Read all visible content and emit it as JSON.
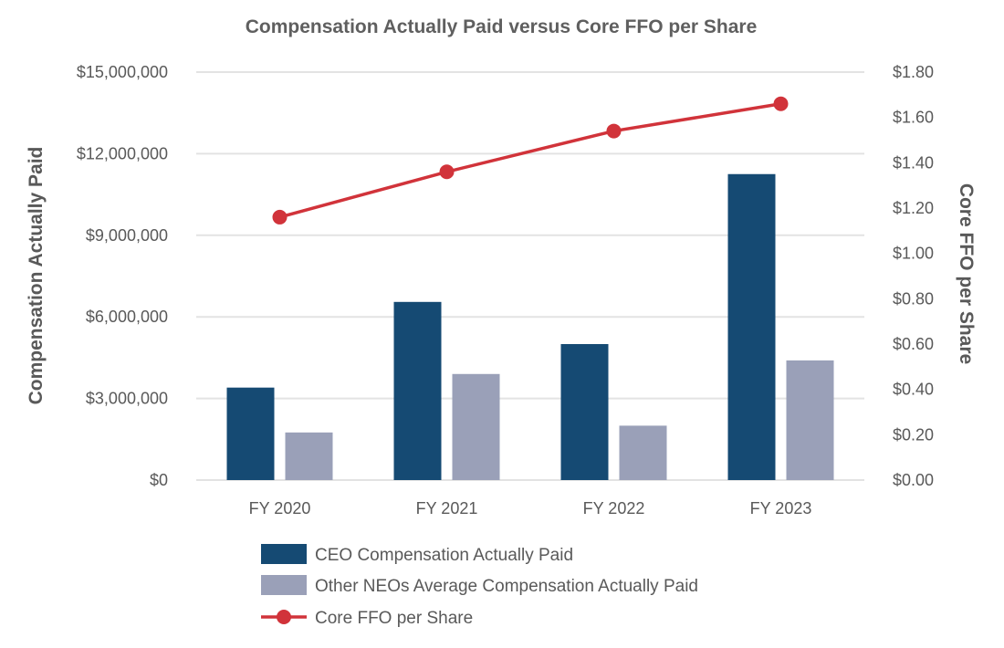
{
  "chart_data": {
    "type": "bar",
    "title": "Compensation Actually Paid versus Core FFO per Share",
    "categories": [
      "FY 2020",
      "FY 2021",
      "FY 2022",
      "FY 2023"
    ],
    "series": [
      {
        "name": "CEO Compensation Actually Paid",
        "kind": "bar",
        "axis": "left",
        "color": "#154a73",
        "values": [
          3400000,
          6550000,
          5000000,
          11250000
        ]
      },
      {
        "name": "Other NEOs Average Compensation Actually Paid",
        "kind": "bar",
        "axis": "left",
        "color": "#9aa0b8",
        "values": [
          1750000,
          3900000,
          2000000,
          4400000
        ]
      },
      {
        "name": "Core FFO per Share",
        "kind": "line",
        "axis": "right",
        "color": "#d1333a",
        "values": [
          1.16,
          1.36,
          1.54,
          1.66
        ]
      }
    ],
    "ylabel": "Compensation Actually Paid",
    "y2label": "Core FFO per Share",
    "ylim": [
      0,
      15000000
    ],
    "y2lim": [
      0,
      1.8
    ],
    "yticks": [
      "$0",
      "$3,000,000",
      "$6,000,000",
      "$9,000,000",
      "$12,000,000",
      "$15,000,000"
    ],
    "y2ticks": [
      "$0.00",
      "$0.20",
      "$0.40",
      "$0.60",
      "$0.80",
      "$1.00",
      "$1.20",
      "$1.40",
      "$1.60",
      "$1.80"
    ],
    "grid": true,
    "legend": "bottom"
  }
}
